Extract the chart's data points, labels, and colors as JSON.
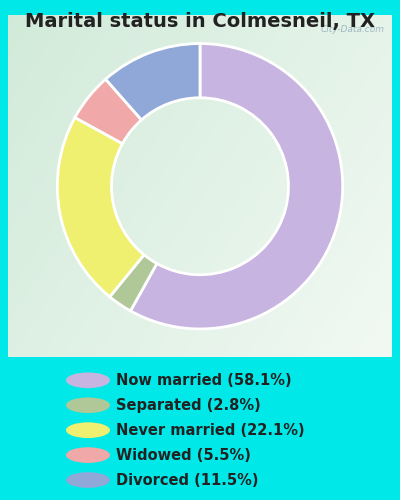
{
  "title": "Marital status in Colmesneil, TX",
  "slices": [
    {
      "label": "Now married (58.1%)",
      "value": 58.1,
      "color": "#c8b4e0"
    },
    {
      "label": "Separated (2.8%)",
      "value": 2.8,
      "color": "#b0c898"
    },
    {
      "label": "Never married (22.1%)",
      "value": 22.1,
      "color": "#f0f070"
    },
    {
      "label": "Widowed (5.5%)",
      "value": 5.5,
      "color": "#f0a8a8"
    },
    {
      "label": "Divorced (11.5%)",
      "value": 11.5,
      "color": "#90a8d8"
    }
  ],
  "bg_cyan": "#00e8e8",
  "title_fontsize": 14,
  "legend_fontsize": 10.5,
  "donut_width": 0.38,
  "watermark": "City-Data.com",
  "start_angle": 90,
  "chart_bg_color": "#d8ece0"
}
